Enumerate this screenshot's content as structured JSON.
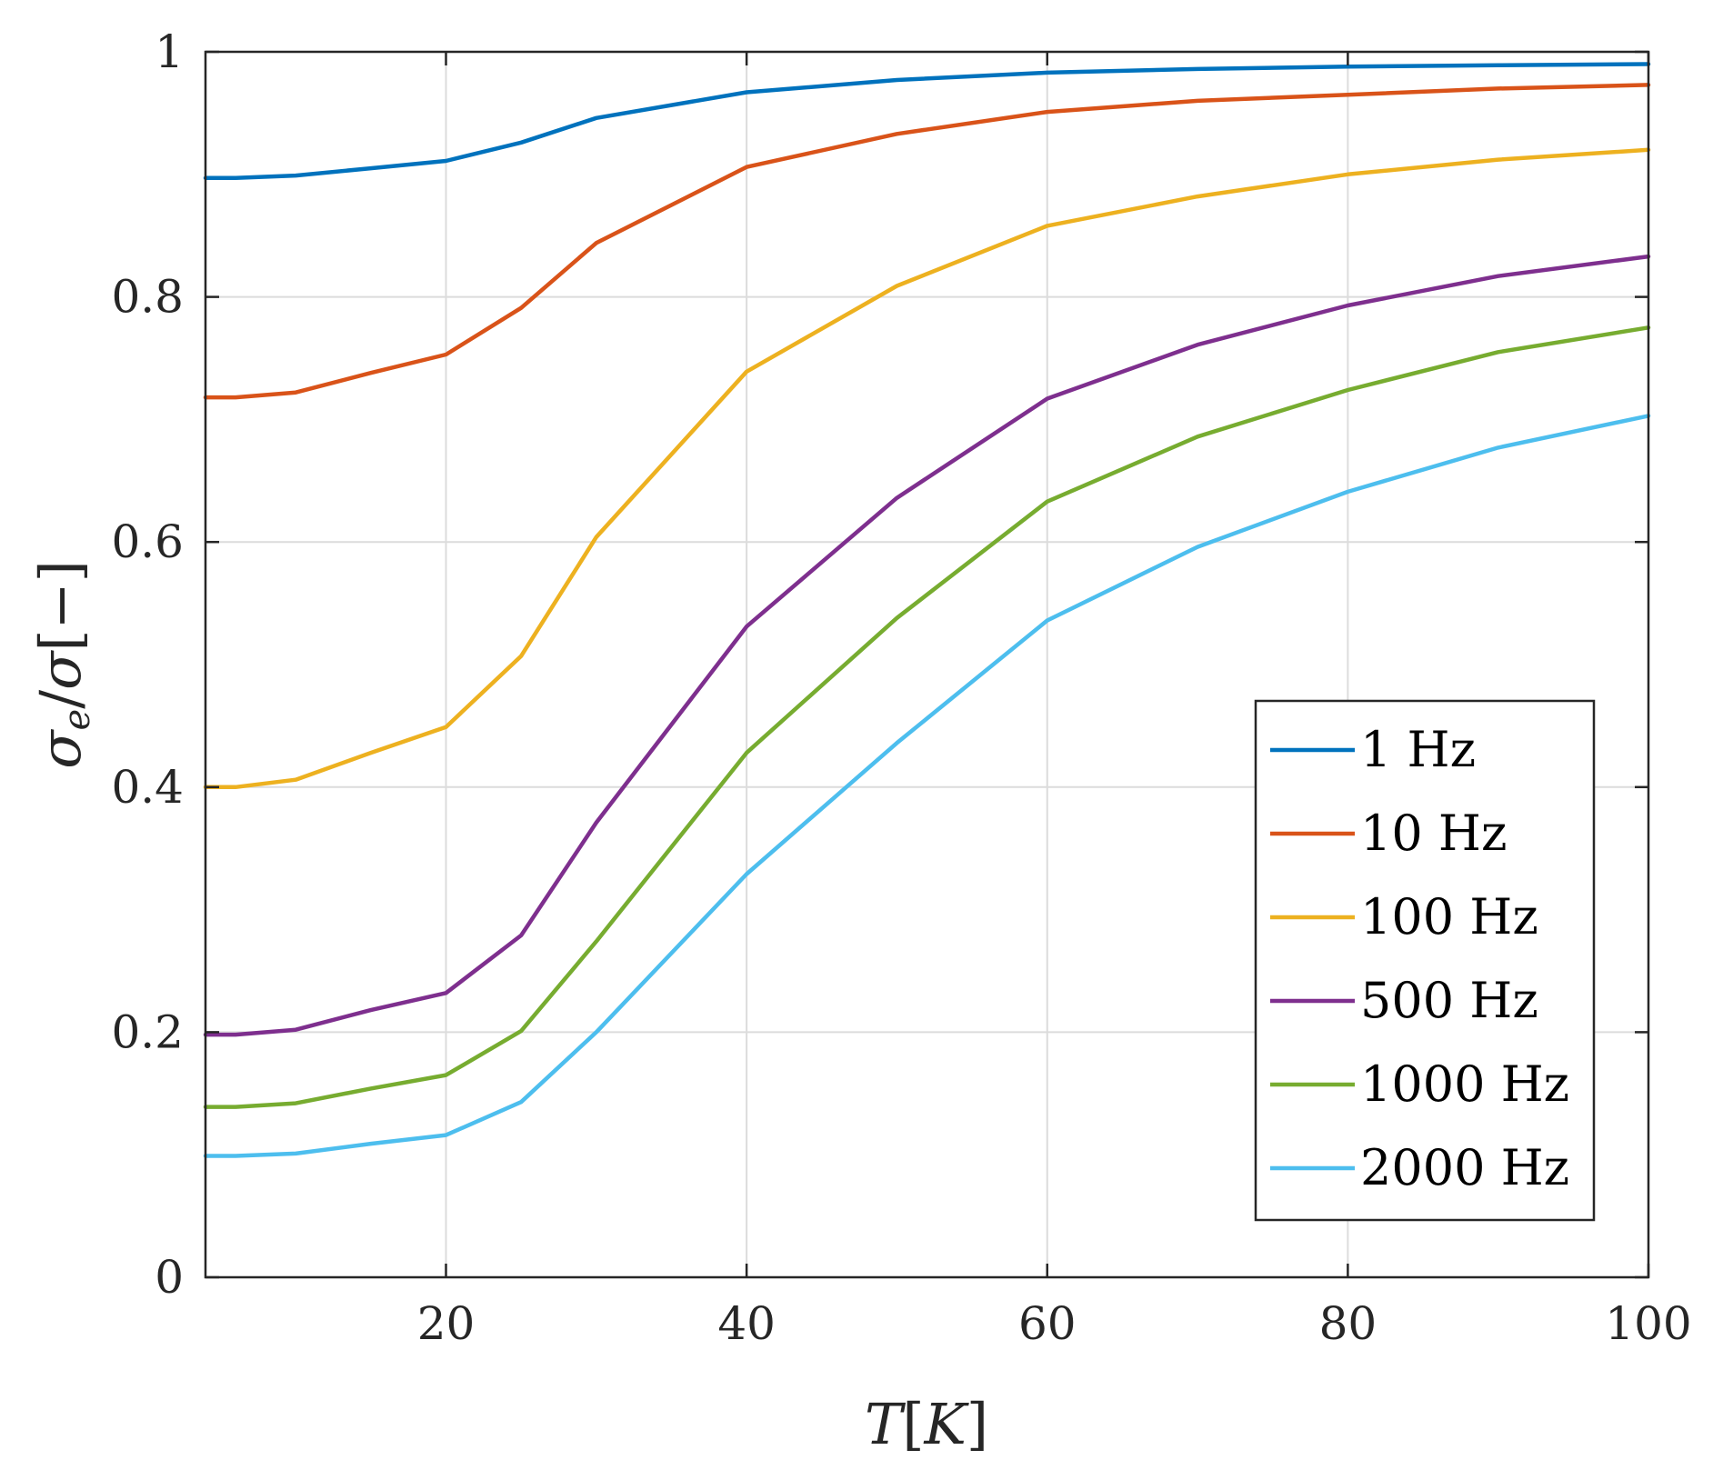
{
  "chart_data": {
    "type": "line",
    "title": "",
    "xlabel_parts": {
      "main": "T",
      "open": "[",
      "unit": "K",
      "close": "]"
    },
    "ylabel_parts": {
      "sym1": "σ",
      "sub": "e",
      "slash": "/",
      "sym2": "σ",
      "unit": "[−]"
    },
    "xlim": [
      4,
      100
    ],
    "ylim": [
      0,
      1
    ],
    "xticks": [
      20,
      40,
      60,
      80,
      100
    ],
    "xtick_labels": [
      "20",
      "40",
      "60",
      "80",
      "100"
    ],
    "yticks": [
      0,
      0.2,
      0.4,
      0.6,
      0.8,
      1
    ],
    "ytick_labels": [
      "0",
      "0.2",
      "0.4",
      "0.6",
      "0.8",
      "1"
    ],
    "grid": true,
    "legend_position": "bottom-right",
    "x": [
      4,
      6,
      10,
      15,
      20,
      25,
      30,
      40,
      50,
      60,
      70,
      80,
      90,
      100
    ],
    "series": [
      {
        "name": "1 Hz",
        "color": "#0072BD",
        "values": [
          0.897,
          0.897,
          0.899,
          0.905,
          0.911,
          0.926,
          0.946,
          0.967,
          0.977,
          0.983,
          0.986,
          0.988,
          0.989,
          0.99
        ]
      },
      {
        "name": "10 Hz",
        "color": "#D95319",
        "values": [
          0.718,
          0.718,
          0.722,
          0.738,
          0.753,
          0.791,
          0.844,
          0.906,
          0.933,
          0.951,
          0.96,
          0.965,
          0.97,
          0.973
        ]
      },
      {
        "name": "100 Hz",
        "color": "#EDB120",
        "values": [
          0.4,
          0.4,
          0.406,
          0.428,
          0.449,
          0.507,
          0.604,
          0.739,
          0.809,
          0.858,
          0.882,
          0.9,
          0.912,
          0.92
        ]
      },
      {
        "name": "500 Hz",
        "color": "#7E2F8E",
        "values": [
          0.198,
          0.198,
          0.202,
          0.218,
          0.232,
          0.279,
          0.371,
          0.531,
          0.636,
          0.717,
          0.761,
          0.793,
          0.817,
          0.833
        ]
      },
      {
        "name": "1000 Hz",
        "color": "#77AC30",
        "values": [
          0.139,
          0.139,
          0.142,
          0.154,
          0.165,
          0.201,
          0.274,
          0.428,
          0.538,
          0.633,
          0.686,
          0.724,
          0.755,
          0.775
        ]
      },
      {
        "name": "2000 Hz",
        "color": "#4DBEEE",
        "values": [
          0.099,
          0.099,
          0.101,
          0.109,
          0.116,
          0.143,
          0.2,
          0.329,
          0.436,
          0.536,
          0.596,
          0.641,
          0.677,
          0.703
        ]
      }
    ]
  }
}
